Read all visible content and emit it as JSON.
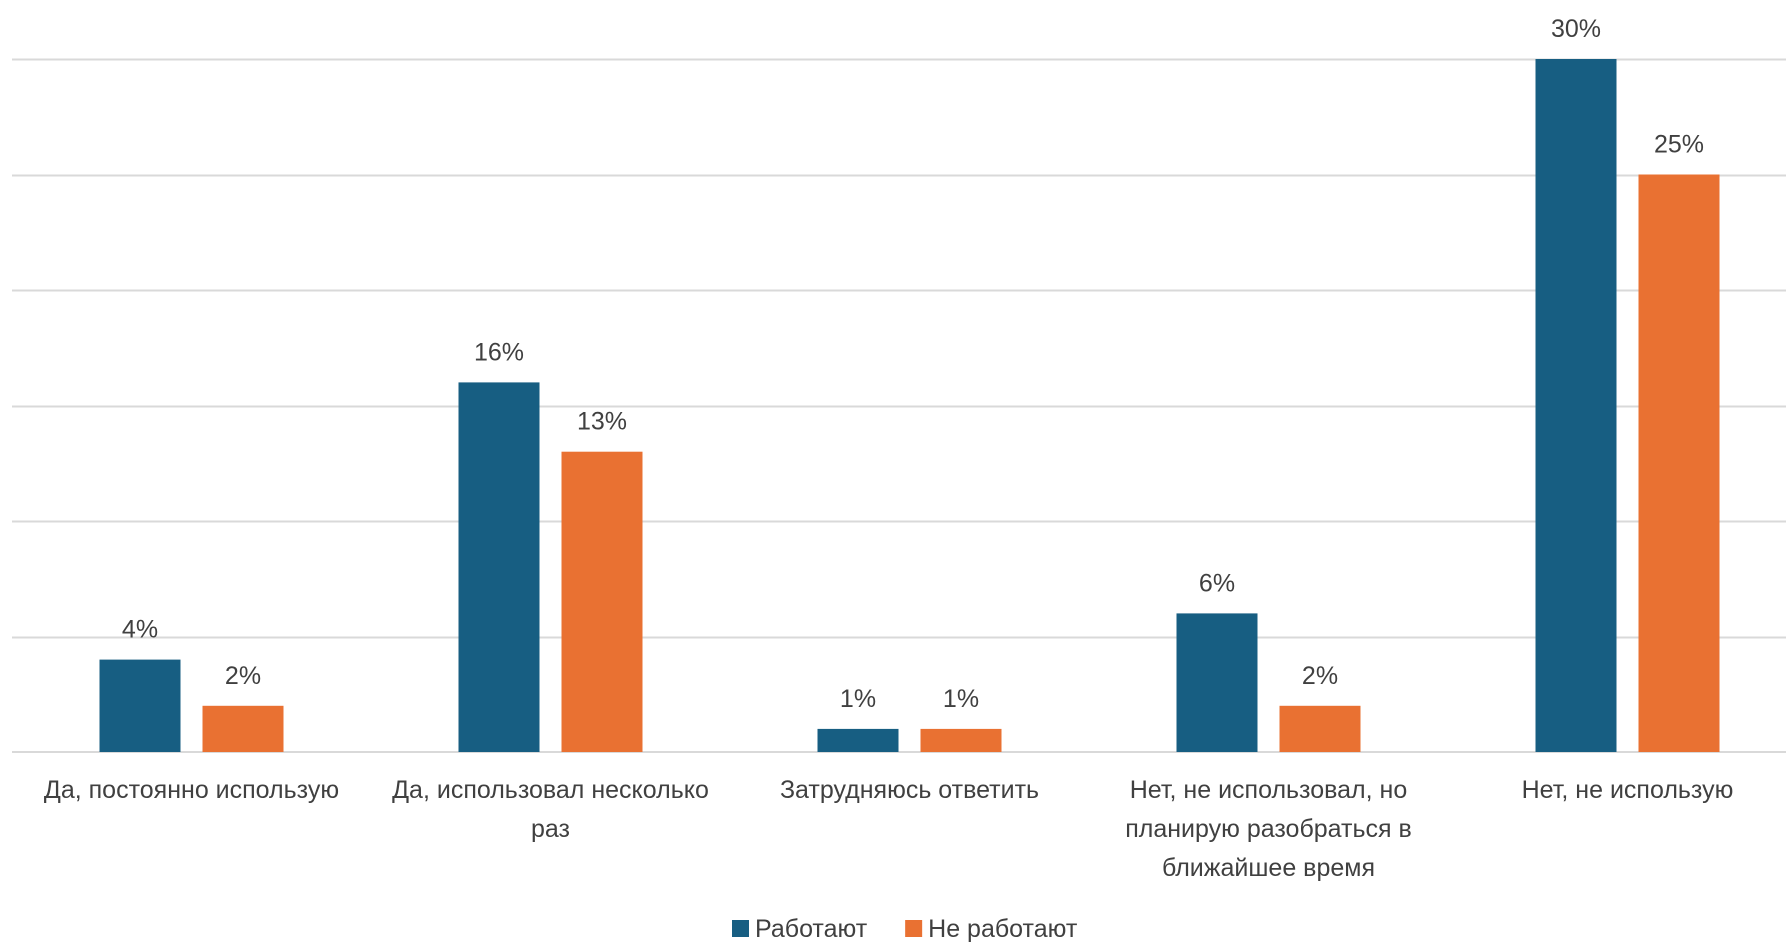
{
  "chart_data": {
    "type": "bar",
    "categories": [
      [
        "Да, постоянно использую"
      ],
      [
        "Да, использовал несколько",
        "раз"
      ],
      [
        "Затрудняюсь ответить"
      ],
      [
        "Нет, не использовал, но",
        "планирую разобраться в",
        "ближайшее время"
      ],
      [
        "Нет, не использую"
      ]
    ],
    "series": [
      {
        "name": "Работают",
        "color": "#175e82",
        "values": [
          4,
          16,
          1,
          6,
          30
        ],
        "labels": [
          "4%",
          "16%",
          "1%",
          "6%",
          "30%"
        ]
      },
      {
        "name": "Не работают",
        "color": "#e97132",
        "values": [
          2,
          13,
          1,
          2,
          25
        ],
        "labels": [
          "2%",
          "13%",
          "1%",
          "2%",
          "25%"
        ]
      }
    ],
    "ylim": [
      0,
      30
    ],
    "grid": true,
    "legend_position": "bottom",
    "title": "",
    "xlabel": "",
    "ylabel": ""
  }
}
